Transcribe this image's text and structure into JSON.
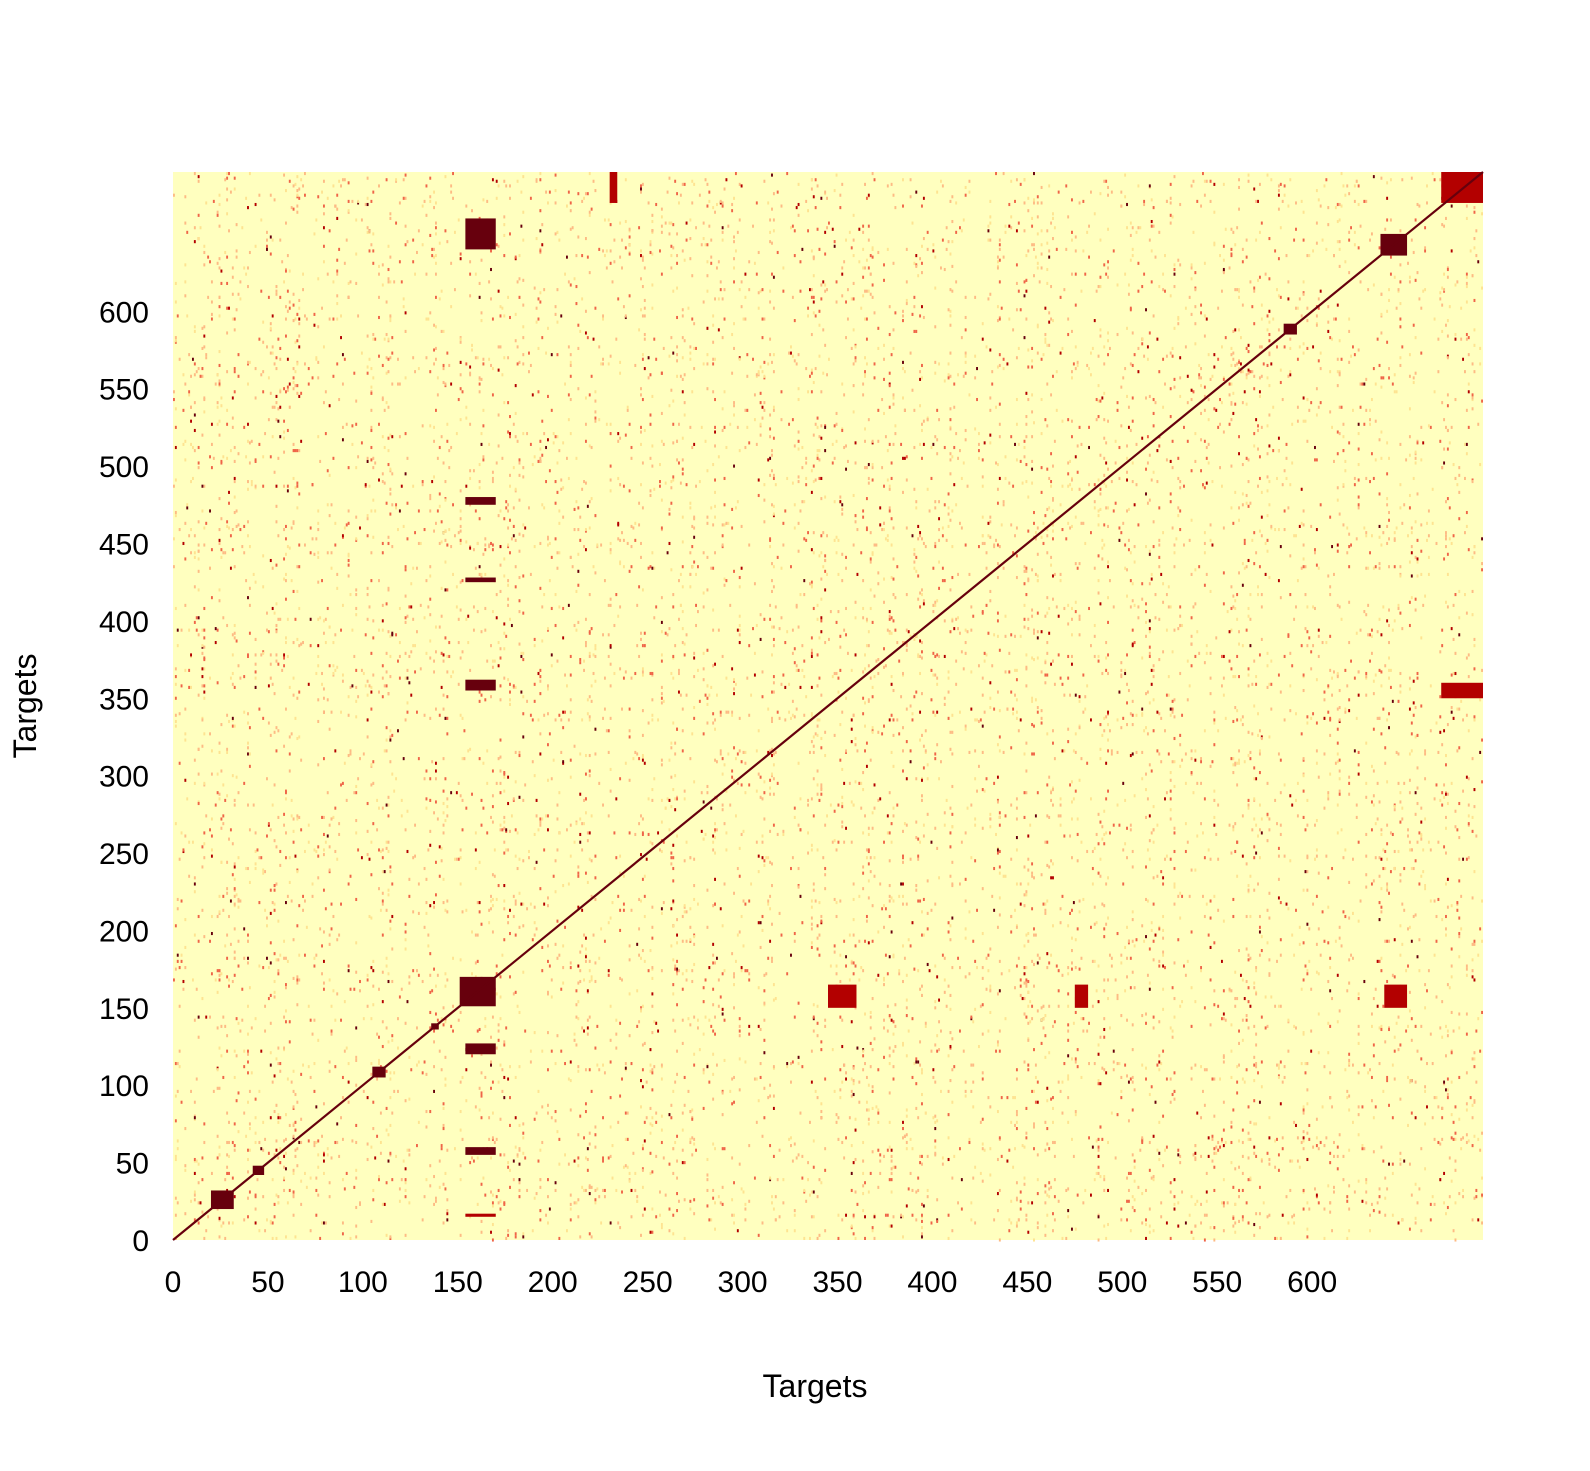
{
  "chart_data": {
    "type": "heatmap",
    "title": "",
    "xlabel": "Targets",
    "ylabel": "Targets",
    "n": 690,
    "xlim": [
      0,
      690
    ],
    "ylim": [
      0,
      690
    ],
    "x_ticks": [
      0,
      50,
      100,
      150,
      200,
      250,
      300,
      350,
      400,
      450,
      500,
      550,
      600
    ],
    "y_ticks": [
      0,
      50,
      100,
      150,
      200,
      250,
      300,
      350,
      400,
      450,
      500,
      550,
      600
    ],
    "colorscale": [
      "#ffffbf",
      "#fee391",
      "#fdbb84",
      "#ef6548",
      "#b30000",
      "#67000d"
    ],
    "diagonal_value": 1.0,
    "grid": false,
    "legend": "none",
    "dense_blocks": [
      {
        "x": [
          151,
          170
        ],
        "y": [
          151,
          170
        ],
        "value": 1.0
      },
      {
        "x": [
          136,
          140
        ],
        "y": [
          136,
          140
        ],
        "value": 1.0
      },
      {
        "x": [
          20,
          32
        ],
        "y": [
          20,
          32
        ],
        "value": 0.9
      },
      {
        "x": [
          42,
          48
        ],
        "y": [
          42,
          48
        ],
        "value": 0.9
      },
      {
        "x": [
          105,
          112
        ],
        "y": [
          105,
          112
        ],
        "value": 0.9
      },
      {
        "x": [
          585,
          592
        ],
        "y": [
          585,
          592
        ],
        "value": 0.9
      },
      {
        "x": [
          636,
          650
        ],
        "y": [
          636,
          650
        ],
        "value": 0.9
      }
    ],
    "cross_bands": [
      {
        "x": [
          154,
          170
        ],
        "y": [
          120,
          127
        ],
        "value": 0.95
      },
      {
        "x": [
          154,
          170
        ],
        "y": [
          355,
          362
        ],
        "value": 0.95
      },
      {
        "x": [
          154,
          170
        ],
        "y": [
          475,
          480
        ],
        "value": 0.95
      },
      {
        "x": [
          154,
          170
        ],
        "y": [
          425,
          428
        ],
        "value": 0.9
      },
      {
        "x": [
          154,
          170
        ],
        "y": [
          55,
          60
        ],
        "value": 0.9
      },
      {
        "x": [
          154,
          170
        ],
        "y": [
          15,
          17
        ],
        "value": 0.85
      },
      {
        "x": [
          154,
          170
        ],
        "y": [
          640,
          660
        ],
        "value": 0.9
      },
      {
        "x": [
          345,
          360
        ],
        "y": [
          150,
          165
        ],
        "value": 0.85
      },
      {
        "x": [
          475,
          482
        ],
        "y": [
          150,
          165
        ],
        "value": 0.85
      },
      {
        "x": [
          638,
          650
        ],
        "y": [
          150,
          165
        ],
        "value": 0.85
      },
      {
        "x": [
          668,
          690
        ],
        "y": [
          350,
          360
        ],
        "value": 0.85
      },
      {
        "x": [
          668,
          690
        ],
        "y": [
          670,
          690
        ],
        "value": 0.85
      },
      {
        "x": [
          230,
          234
        ],
        "y": [
          670,
          690
        ],
        "value": 0.8
      }
    ]
  }
}
